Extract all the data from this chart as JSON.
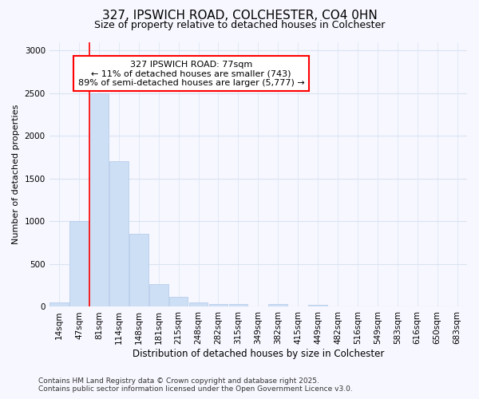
{
  "title_line1": "327, IPSWICH ROAD, COLCHESTER, CO4 0HN",
  "title_line2": "Size of property relative to detached houses in Colchester",
  "xlabel": "Distribution of detached houses by size in Colchester",
  "ylabel": "Number of detached properties",
  "footer_line1": "Contains HM Land Registry data © Crown copyright and database right 2025.",
  "footer_line2": "Contains public sector information licensed under the Open Government Licence v3.0.",
  "annotation_line1": "327 IPSWICH ROAD: 77sqm",
  "annotation_line2": "← 11% of detached houses are smaller (743)",
  "annotation_line3": "89% of semi-detached houses are larger (5,777) →",
  "bar_labels": [
    "14sqm",
    "47sqm",
    "81sqm",
    "114sqm",
    "148sqm",
    "181sqm",
    "215sqm",
    "248sqm",
    "282sqm",
    "315sqm",
    "349sqm",
    "382sqm",
    "415sqm",
    "449sqm",
    "482sqm",
    "516sqm",
    "549sqm",
    "583sqm",
    "616sqm",
    "650sqm",
    "683sqm"
  ],
  "bar_values": [
    50,
    1000,
    2500,
    1700,
    850,
    270,
    120,
    50,
    35,
    35,
    0,
    35,
    0,
    20,
    0,
    0,
    0,
    0,
    0,
    0,
    0
  ],
  "bar_color": "#ccdff5",
  "bar_edge_color": "#b0c8e8",
  "red_line_x": 1.5,
  "ylim": [
    0,
    3100
  ],
  "yticks": [
    0,
    500,
    1000,
    1500,
    2000,
    2500,
    3000
  ],
  "annotation_box_color": "white",
  "annotation_box_edge": "red",
  "grid_color": "#d8e4f0",
  "background_color": "#f7f7ff",
  "title1_fontsize": 11,
  "title2_fontsize": 9,
  "tick_fontsize": 7.5,
  "ylabel_fontsize": 8,
  "xlabel_fontsize": 8.5,
  "annot_fontsize": 8,
  "footer_fontsize": 6.5
}
